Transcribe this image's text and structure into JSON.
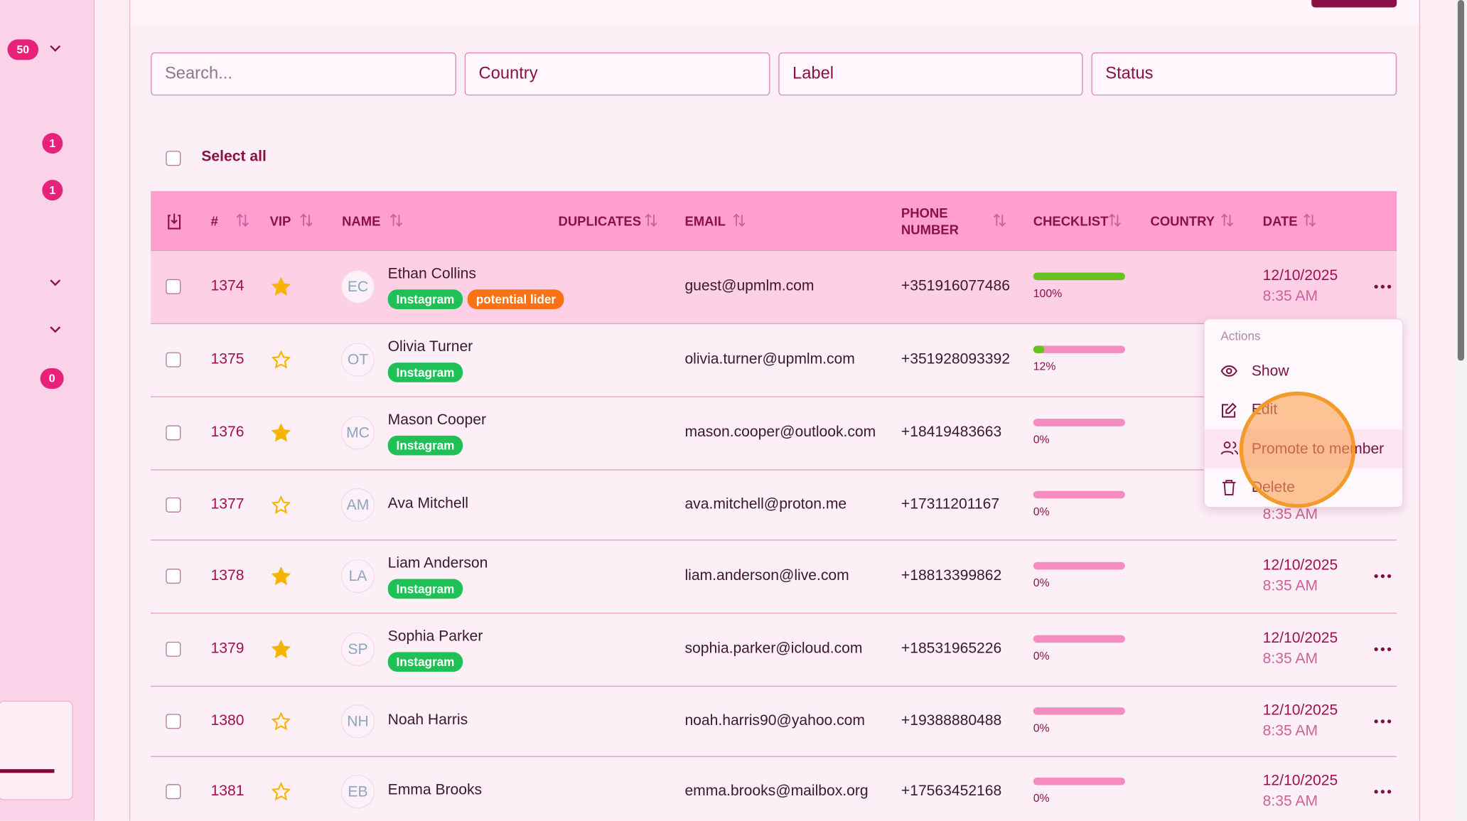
{
  "sidebar": {
    "page_size": "50",
    "badges": [
      "1",
      "1",
      "0"
    ]
  },
  "filters": {
    "search": "Search...",
    "country": "Country",
    "label": "Label",
    "status": "Status"
  },
  "select_all": "Select all",
  "table": {
    "headers": [
      "#",
      "VIP",
      "NAME",
      "DUPLICATES",
      "EMAIL",
      "PHONE NUMBER",
      "CHECKLIST",
      "COUNTRY",
      "DATE"
    ],
    "rows": [
      {
        "id": "1374",
        "vip": true,
        "initials": "EC",
        "name": "Ethan Collins",
        "tags": [
          "Instagram",
          "potential lider"
        ],
        "email": "guest@upmlm.com",
        "phone": "+351916077486",
        "checklist": 100,
        "checklist_label": "100%",
        "date": "12/10/2025",
        "time": "8:35 AM"
      },
      {
        "id": "1375",
        "vip": false,
        "initials": "OT",
        "name": "Olivia Turner",
        "tags": [
          "Instagram"
        ],
        "email": "olivia.turner@upmlm.com",
        "phone": "+351928093392",
        "checklist": 12,
        "checklist_label": "12%",
        "date": null,
        "time": null
      },
      {
        "id": "1376",
        "vip": true,
        "initials": "MC",
        "name": "Mason Cooper",
        "tags": [
          "Instagram"
        ],
        "email": "mason.cooper@outlook.com",
        "phone": "+18419483663",
        "checklist": 0,
        "checklist_label": "0%",
        "date": null,
        "time": null
      },
      {
        "id": "1377",
        "vip": false,
        "initials": "AM",
        "name": "Ava Mitchell",
        "tags": [],
        "email": "ava.mitchell@proton.me",
        "phone": "+17311201167",
        "checklist": 0,
        "checklist_label": "0%",
        "date": null,
        "time": "8:35 AM"
      },
      {
        "id": "1378",
        "vip": true,
        "initials": "LA",
        "name": "Liam Anderson",
        "tags": [
          "Instagram"
        ],
        "email": "liam.anderson@live.com",
        "phone": "+18813399862",
        "checklist": 0,
        "checklist_label": "0%",
        "date": "12/10/2025",
        "time": "8:35 AM"
      },
      {
        "id": "1379",
        "vip": true,
        "initials": "SP",
        "name": "Sophia Parker",
        "tags": [
          "Instagram"
        ],
        "email": "sophia.parker@icloud.com",
        "phone": "+18531965226",
        "checklist": 0,
        "checklist_label": "0%",
        "date": "12/10/2025",
        "time": "8:35 AM"
      },
      {
        "id": "1380",
        "vip": false,
        "initials": "NH",
        "name": "Noah Harris",
        "tags": [],
        "email": "noah.harris90@yahoo.com",
        "phone": "+19388880488",
        "checklist": 0,
        "checklist_label": "0%",
        "date": "12/10/2025",
        "time": "8:35 AM"
      },
      {
        "id": "1381",
        "vip": false,
        "initials": "EB",
        "name": "Emma Brooks",
        "tags": [],
        "email": "emma.brooks@mailbox.org",
        "phone": "+17563452168",
        "checklist": 0,
        "checklist_label": "0%",
        "date": "12/10/2025",
        "time": "8:35 AM"
      }
    ]
  },
  "menu": {
    "title": "Actions",
    "items": [
      "Show",
      "Edit",
      "Promote to member",
      "Delete"
    ]
  }
}
